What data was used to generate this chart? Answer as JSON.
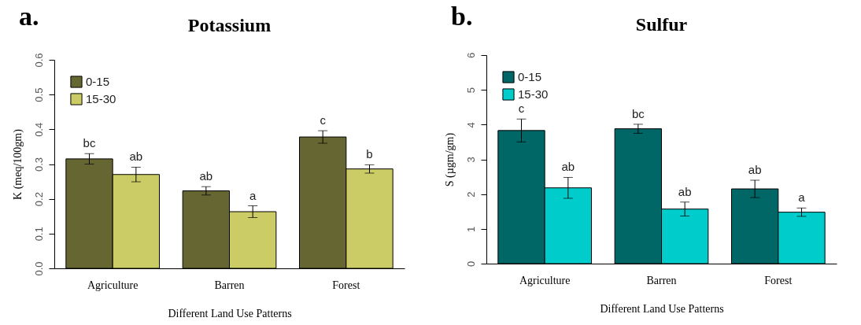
{
  "chart_data": [
    {
      "type": "bar",
      "title": "Potassium",
      "xlabel": "Different Land Use Patterns",
      "ylabel": "K (meq/100gm)",
      "annotations": [
        "a."
      ],
      "categories": [
        "Agriculture",
        "Barren",
        "Forest"
      ],
      "series": [
        {
          "name": "0-15",
          "color": "#666633",
          "values": [
            0.315,
            0.223,
            0.378
          ],
          "errors": [
            0.015,
            0.012,
            0.018
          ],
          "value_labels": [
            "bc",
            "ab",
            "c"
          ]
        },
        {
          "name": "15-30",
          "color": "#cccc66",
          "values": [
            0.27,
            0.163,
            0.286
          ],
          "errors": [
            0.021,
            0.017,
            0.012
          ],
          "value_labels": [
            "ab",
            "a",
            "b"
          ]
        }
      ],
      "ylim": [
        0,
        0.6
      ],
      "yticks": [
        {
          "value": 0,
          "label": "0.0"
        },
        0.1,
        0.2,
        0.3,
        0.4,
        0.5,
        0.6
      ],
      "grid": false,
      "legend": "top left"
    },
    {
      "type": "bar",
      "title": "Sulfur",
      "xlabel": "Different Land Use Patterns",
      "ylabel": "S (µgm/gm)",
      "annotations": [
        "b."
      ],
      "categories": [
        "Agriculture",
        "Barren",
        "Forest"
      ],
      "series": [
        {
          "name": "0-15",
          "color": "#006666",
          "values": [
            3.83,
            3.88,
            2.15
          ],
          "errors": [
            0.33,
            0.13,
            0.25
          ],
          "value_labels": [
            "c",
            "bc",
            "ab"
          ]
        },
        {
          "name": "15-30",
          "color": "#00cccc",
          "values": [
            2.18,
            1.57,
            1.48
          ],
          "errors": [
            0.3,
            0.2,
            0.12
          ],
          "value_labels": [
            "ab",
            "ab",
            "a"
          ]
        }
      ],
      "ylim": [
        0,
        6
      ],
      "yticks": [
        0,
        1,
        2,
        3,
        4,
        5,
        6
      ],
      "grid": false,
      "legend": "top left"
    }
  ]
}
